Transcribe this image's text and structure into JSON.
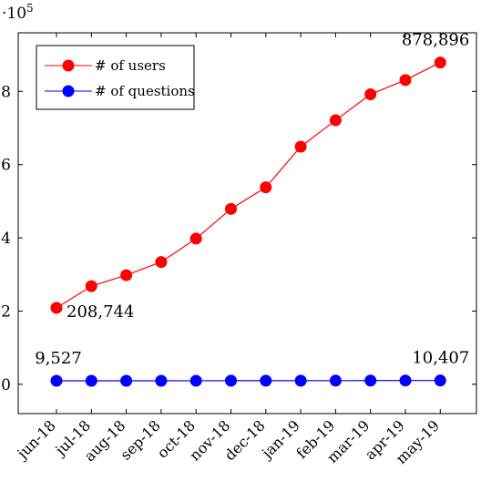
{
  "chart_data": {
    "type": "line",
    "title": "",
    "xlabel": "",
    "ylabel": "",
    "y_multiplier_label": "·10",
    "y_multiplier_exponent": "5",
    "categories": [
      "jun-18",
      "jul-18",
      "aug-18",
      "sep-18",
      "oct-18",
      "nov-18",
      "dec-18",
      "jan-19",
      "feb-19",
      "mar-19",
      "apr-19",
      "may-19"
    ],
    "ylim": [
      -80000,
      960000
    ],
    "yticks": [
      0,
      200000,
      400000,
      600000,
      800000
    ],
    "ytick_labels": [
      "0",
      "2",
      "4",
      "6",
      "8"
    ],
    "grid": false,
    "legend_position": "top-left",
    "series": [
      {
        "name": "# of users",
        "color": "#ff0000",
        "values": [
          208744,
          268000,
          298000,
          334000,
          398000,
          479000,
          538000,
          649000,
          721000,
          792000,
          831000,
          878896
        ]
      },
      {
        "name": "# of questions",
        "color": "#0000ff",
        "values": [
          9527,
          9500,
          9600,
          9650,
          9700,
          9800,
          9850,
          9950,
          10050,
          10150,
          10300,
          10407
        ]
      }
    ],
    "annotations": [
      {
        "series": 0,
        "index": 0,
        "text": "208,744",
        "position": "right"
      },
      {
        "series": 0,
        "index": 11,
        "text": "878,896",
        "position": "above"
      },
      {
        "series": 1,
        "index": 0,
        "text": "9,527",
        "position": "above"
      },
      {
        "series": 1,
        "index": 11,
        "text": "10,407",
        "position": "above"
      }
    ]
  }
}
